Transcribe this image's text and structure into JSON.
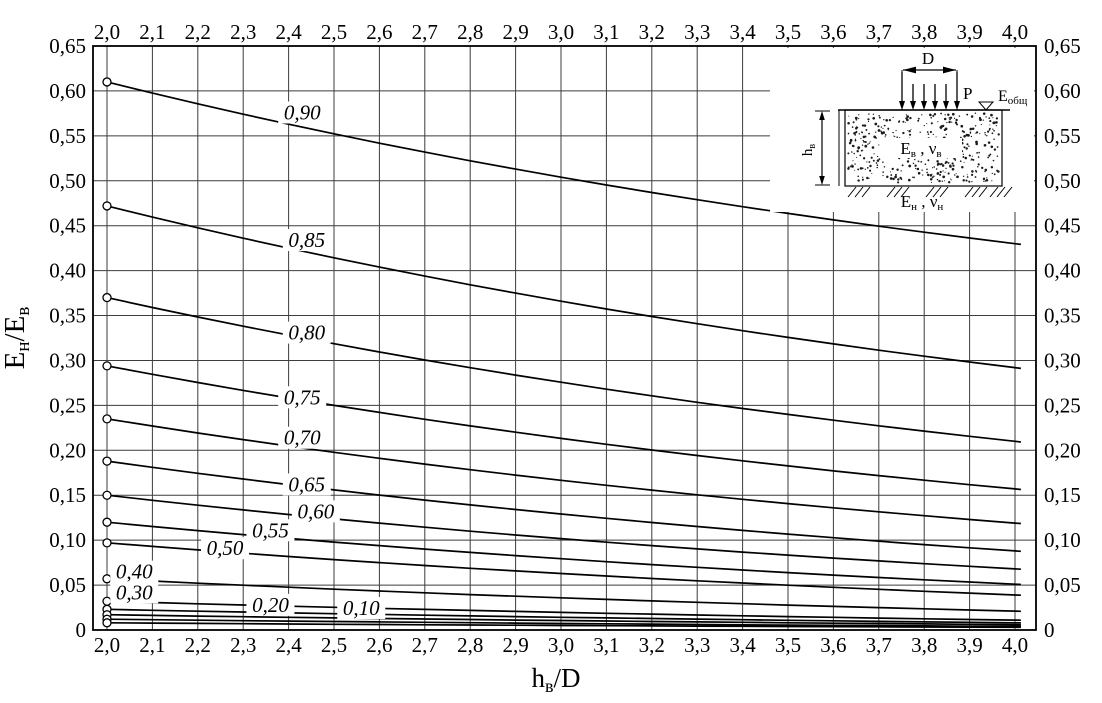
{
  "colors": {
    "ink": "#000000",
    "grid": "#3c3c3c",
    "background": "#ffffff"
  },
  "chart_data": {
    "type": "line",
    "title": "",
    "xlabel": "h_в/D",
    "ylabel": "E_н/E_в",
    "xlabel_segments": [
      {
        "t": "h"
      },
      {
        "t": "в",
        "sub": true
      },
      {
        "t": "/D"
      }
    ],
    "ylabel_segments": [
      {
        "t": "E"
      },
      {
        "t": "н",
        "sub": true
      },
      {
        "t": "/E"
      },
      {
        "t": "в",
        "sub": true
      }
    ],
    "x_range": [
      2.0,
      4.0
    ],
    "y_range": [
      0,
      0.65
    ],
    "grid": "on",
    "legend_position": "labels-on-curves",
    "decimal_separator": ",",
    "marker_style": "open circle at x=2.0 on each curve",
    "curve_model": {
      "form": "y(x) = start - (start-end)*(1-exp(-b*(x-2)))/(1-exp(-2*b))",
      "b": 0.36
    },
    "x_ticks": {
      "values": [
        2.0,
        2.1,
        2.2,
        2.3,
        2.4,
        2.5,
        2.6,
        2.7,
        2.8,
        2.9,
        3.0,
        3.1,
        3.2,
        3.3,
        3.4,
        3.5,
        3.6,
        3.7,
        3.8,
        3.9,
        4.0
      ],
      "labels": [
        "2,0",
        "2,1",
        "2,2",
        "2,3",
        "2,4",
        "2,5",
        "2,6",
        "2,7",
        "2,8",
        "2,9",
        "3,0",
        "3,1",
        "3,2",
        "3,3",
        "3,4",
        "3,5",
        "3,6",
        "3,7",
        "3,8",
        "3,9",
        "4,0"
      ]
    },
    "y_ticks": {
      "values": [
        0.65,
        0.6,
        0.55,
        0.5,
        0.45,
        0.4,
        0.35,
        0.3,
        0.25,
        0.2,
        0.15,
        0.1,
        0.05,
        0
      ],
      "labels": [
        "0,65",
        "0,60",
        "0,55",
        "0,50",
        "0,45",
        "0,40",
        "0,35",
        "0,30",
        "0,25",
        "0,20",
        "0,15",
        "0,10",
        "0,05",
        "0"
      ]
    },
    "series": [
      {
        "ratio": 0.9,
        "label": "0,90",
        "start": 0.61,
        "end": 0.43,
        "label_pos": {
          "x": 2.43,
          "y": 0.576
        }
      },
      {
        "ratio": 0.85,
        "label": "0,85",
        "start": 0.472,
        "end": 0.292,
        "label_pos": {
          "x": 2.44,
          "y": 0.434
        }
      },
      {
        "ratio": 0.8,
        "label": "0,80",
        "start": 0.37,
        "end": 0.21,
        "label_pos": {
          "x": 2.44,
          "y": 0.331
        }
      },
      {
        "ratio": 0.75,
        "label": "0,75",
        "start": 0.294,
        "end": 0.157,
        "label_pos": {
          "x": 2.43,
          "y": 0.259
        }
      },
      {
        "ratio": 0.7,
        "label": "0,70",
        "start": 0.235,
        "end": 0.119,
        "label_pos": {
          "x": 2.43,
          "y": 0.214
        }
      },
      {
        "ratio": 0.65,
        "label": "0,65",
        "start": 0.188,
        "end": 0.088,
        "label_pos": {
          "x": 2.44,
          "y": 0.162
        }
      },
      {
        "ratio": 0.6,
        "label": "0,60",
        "start": 0.15,
        "end": 0.068,
        "label_pos": {
          "x": 2.46,
          "y": 0.132
        }
      },
      {
        "ratio": 0.55,
        "label": "0,55",
        "start": 0.12,
        "end": 0.051,
        "label_pos": {
          "x": 2.36,
          "y": 0.111
        }
      },
      {
        "ratio": 0.5,
        "label": "0,50",
        "start": 0.097,
        "end": 0.039,
        "label_pos": {
          "x": 2.26,
          "y": 0.091
        }
      },
      {
        "ratio": 0.4,
        "label": "0,40",
        "start": 0.057,
        "end": 0.021,
        "label_pos": {
          "x": 2.06,
          "y": 0.065
        }
      },
      {
        "ratio": 0.3,
        "label": "0,30",
        "start": 0.032,
        "end": 0.011,
        "label_pos": {
          "x": 2.06,
          "y": 0.042
        }
      },
      {
        "ratio": 0.25,
        "label": null,
        "start": 0.023,
        "end": 0.008,
        "label_pos": null
      },
      {
        "ratio": 0.2,
        "label": "0,20",
        "start": 0.017,
        "end": 0.006,
        "label_pos": {
          "x": 2.36,
          "y": 0.028
        }
      },
      {
        "ratio": 0.15,
        "label": null,
        "start": 0.012,
        "end": 0.004,
        "label_pos": null
      },
      {
        "ratio": 0.1,
        "label": "0,10",
        "start": 0.008,
        "end": 0.003,
        "label_pos": {
          "x": 2.56,
          "y": 0.0245
        }
      }
    ]
  },
  "inset": {
    "load_width_label": "D",
    "pressure_label": "P",
    "load_arrow_count": 6,
    "surface_modulus_segments": [
      {
        "t": "E"
      },
      {
        "t": "общ",
        "sub": true
      }
    ],
    "upper_layer_segments": [
      {
        "t": "E"
      },
      {
        "t": "в",
        "sub": true
      },
      {
        "t": " , "
      },
      {
        "t": "ν"
      },
      {
        "t": "в",
        "sub": true
      }
    ],
    "lower_layer_segments": [
      {
        "t": "E"
      },
      {
        "t": "н",
        "sub": true
      },
      {
        "t": " , "
      },
      {
        "t": "ν"
      },
      {
        "t": "н",
        "sub": true
      }
    ],
    "layer_thickness_segments": [
      {
        "t": "h"
      },
      {
        "t": "в",
        "sub": true
      }
    ]
  }
}
